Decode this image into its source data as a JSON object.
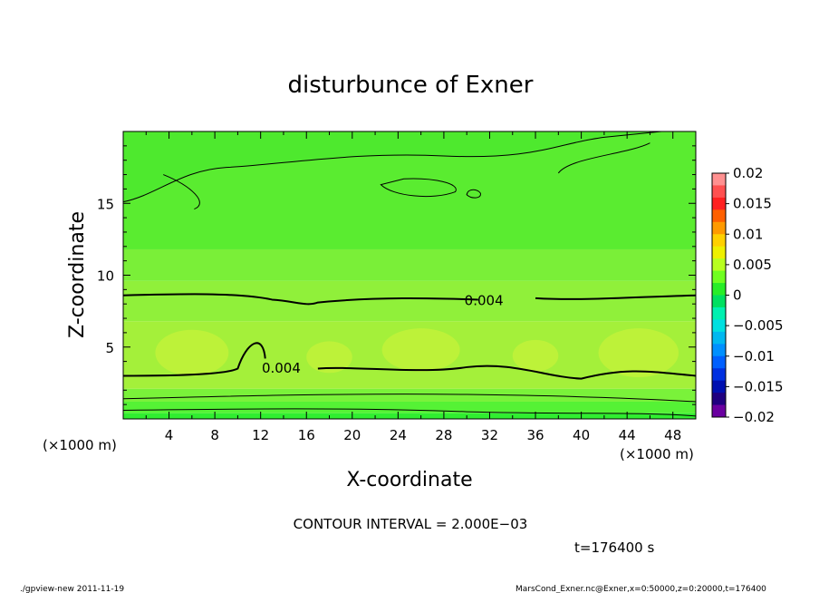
{
  "chart_data": {
    "type": "heatmap",
    "title": "disturbunce of Exner",
    "xlabel": "X-coordinate",
    "ylabel": "Z-coordinate",
    "x_unit": "(×1000 m)",
    "y_unit": "(×1000 m)",
    "xlim": [
      0,
      50
    ],
    "ylim": [
      0,
      20
    ],
    "x_ticks": [
      4,
      8,
      12,
      16,
      20,
      24,
      28,
      32,
      36,
      40,
      44,
      48
    ],
    "y_ticks": [
      5,
      10,
      15
    ],
    "colorbar": {
      "ticks": [
        "0.02",
        "0.015",
        "0.01",
        "0.005",
        "0",
        "−0.005",
        "−0.01",
        "−0.015",
        "−0.02"
      ],
      "range": [
        -0.02,
        0.02
      ],
      "colors": [
        "#ff9090",
        "#ff5050",
        "#ff2020",
        "#ff6000",
        "#ff9a00",
        "#ffd000",
        "#eef000",
        "#b8ff20",
        "#70ff20",
        "#28ee28",
        "#00e060",
        "#00f0b0",
        "#00e0e0",
        "#00b8f0",
        "#0090ff",
        "#0060ff",
        "#0030e0",
        "#0010b0",
        "#200080",
        "#6a00a0"
      ]
    },
    "bands": [
      {
        "z_low": 0.0,
        "z_high": 0.4,
        "value": 0.0005,
        "color": "#30ee30"
      },
      {
        "z_low": 0.4,
        "z_high": 1.2,
        "value": 0.0015,
        "color": "#55f235"
      },
      {
        "z_low": 1.2,
        "z_high": 2.1,
        "value": 0.0025,
        "color": "#7af23a"
      },
      {
        "z_low": 2.1,
        "z_high": 6.8,
        "value": 0.0045,
        "color": "#a4f03a"
      },
      {
        "z_low": 6.8,
        "z_high": 9.6,
        "value": 0.0035,
        "color": "#90f03a"
      },
      {
        "z_low": 9.6,
        "z_high": 11.8,
        "value": 0.0025,
        "color": "#7aef38"
      },
      {
        "z_low": 11.8,
        "z_high": 20.0,
        "value": 0.0015,
        "color": "#5aec30"
      }
    ],
    "contour_labels": [
      {
        "text": "0.004",
        "x": 31.5,
        "z": 8.3
      },
      {
        "text": "0.004",
        "x": 13.8,
        "z": 3.6
      }
    ]
  },
  "contour_interval": "CONTOUR INTERVAL = 2.000E−03",
  "time_label": "t=176400 s",
  "footer_left": "./gpview-new   2011-11-19",
  "footer_right": "MarsCond_Exner.nc@Exner,x=0:50000,z=0:20000,t=176400"
}
